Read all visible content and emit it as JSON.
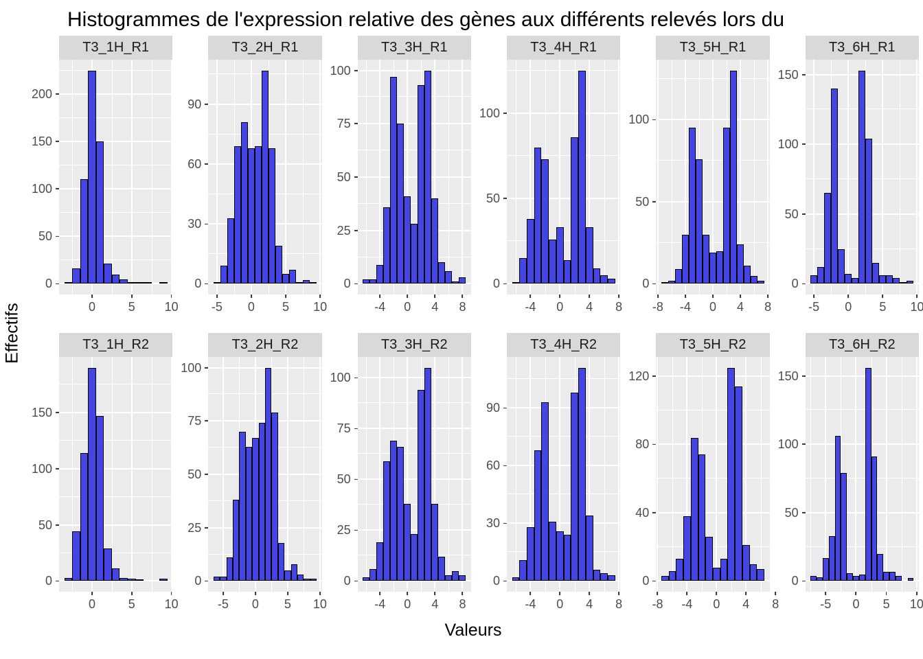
{
  "chart_data": {
    "type": "bar",
    "subtype": "faceted-histogram",
    "title": "Histogrammes de l'expression relative des gènes aux différents relevés lors du",
    "xlabel": "Valeurs",
    "ylabel": "Effectifs",
    "binwidth": 1,
    "legend": "none",
    "grid": "on",
    "facets": [
      {
        "label": "T3_1H_R1",
        "row": 1,
        "col": 1,
        "yticks": [
          0,
          50,
          100,
          150,
          200
        ],
        "xticks": [
          0,
          5,
          10
        ],
        "first_bin_center": -3,
        "counts": [
          2,
          16,
          110,
          225,
          150,
          21,
          10,
          5,
          2,
          1,
          1,
          0,
          2
        ]
      },
      {
        "label": "T3_2H_R1",
        "row": 1,
        "col": 2,
        "yticks": [
          0,
          30,
          60,
          90
        ],
        "xticks": [
          -5,
          0,
          5,
          10
        ],
        "first_bin_center": -5,
        "counts": [
          1,
          9,
          33,
          69,
          81,
          68,
          69,
          107,
          68,
          19,
          5,
          7,
          1,
          2,
          1
        ]
      },
      {
        "label": "T3_3H_R1",
        "row": 1,
        "col": 3,
        "yticks": [
          0,
          25,
          50,
          75,
          100
        ],
        "xticks": [
          -4,
          0,
          4,
          8
        ],
        "first_bin_center": -6,
        "counts": [
          2,
          2,
          9,
          36,
          97,
          75,
          41,
          28,
          93,
          100,
          40,
          10,
          6,
          1,
          3
        ]
      },
      {
        "label": "T3_4H_R1",
        "row": 1,
        "col": 4,
        "yticks": [
          0,
          50,
          100
        ],
        "xticks": [
          -4,
          0,
          4,
          8
        ],
        "first_bin_center": -6,
        "counts": [
          1,
          15,
          38,
          80,
          73,
          26,
          33,
          14,
          86,
          125,
          33,
          9,
          5,
          3
        ]
      },
      {
        "label": "T3_5H_R1",
        "row": 1,
        "col": 5,
        "yticks": [
          0,
          50,
          100
        ],
        "xticks": [
          -8,
          -4,
          0,
          4,
          8
        ],
        "first_bin_center": -7,
        "counts": [
          1,
          2,
          9,
          30,
          95,
          76,
          30,
          19,
          20,
          95,
          130,
          24,
          11,
          5,
          2
        ]
      },
      {
        "label": "T3_6H_R1",
        "row": 1,
        "col": 6,
        "yticks": [
          0,
          50,
          100,
          150
        ],
        "xticks": [
          -5,
          0,
          5,
          10
        ],
        "first_bin_center": -5,
        "counts": [
          6,
          12,
          65,
          140,
          25,
          7,
          4,
          153,
          104,
          15,
          6,
          6,
          4,
          1,
          2
        ]
      },
      {
        "label": "T3_1H_R2",
        "row": 2,
        "col": 1,
        "yticks": [
          0,
          50,
          100,
          150
        ],
        "xticks": [
          0,
          5,
          10
        ],
        "first_bin_center": -3,
        "counts": [
          3,
          44,
          114,
          190,
          147,
          29,
          11,
          3,
          2,
          1,
          0,
          0,
          2
        ]
      },
      {
        "label": "T3_2H_R2",
        "row": 2,
        "col": 2,
        "yticks": [
          0,
          25,
          50,
          75,
          100
        ],
        "xticks": [
          -5,
          0,
          5,
          10
        ],
        "first_bin_center": -6,
        "counts": [
          2,
          2,
          11,
          38,
          70,
          63,
          67,
          74,
          100,
          79,
          18,
          5,
          8,
          3,
          1,
          1
        ]
      },
      {
        "label": "T3_3H_R2",
        "row": 2,
        "col": 3,
        "yticks": [
          0,
          25,
          50,
          75,
          100
        ],
        "xticks": [
          -4,
          0,
          4,
          8
        ],
        "first_bin_center": -6,
        "counts": [
          2,
          6,
          19,
          59,
          69,
          66,
          38,
          23,
          94,
          105,
          38,
          12,
          3,
          5,
          3
        ]
      },
      {
        "label": "T3_4H_R2",
        "row": 2,
        "col": 4,
        "yticks": [
          0,
          30,
          60,
          90
        ],
        "xticks": [
          -4,
          0,
          4,
          8
        ],
        "first_bin_center": -6,
        "counts": [
          2,
          11,
          28,
          68,
          93,
          31,
          26,
          24,
          98,
          111,
          34,
          6,
          4,
          3
        ]
      },
      {
        "label": "T3_5H_R2",
        "row": 2,
        "col": 5,
        "yticks": [
          0,
          40,
          80,
          120
        ],
        "xticks": [
          -8,
          -4,
          0,
          4,
          8
        ],
        "first_bin_center": -7,
        "counts": [
          3,
          6,
          13,
          38,
          84,
          74,
          26,
          8,
          13,
          125,
          114,
          21,
          10,
          7
        ]
      },
      {
        "label": "T3_6H_R2",
        "row": 2,
        "col": 6,
        "yticks": [
          0,
          50,
          100,
          150
        ],
        "xticks": [
          -5,
          0,
          5,
          10
        ],
        "first_bin_center": -7,
        "counts": [
          4,
          3,
          17,
          33,
          106,
          79,
          6,
          4,
          5,
          156,
          91,
          20,
          7,
          7,
          4,
          0,
          2
        ]
      }
    ],
    "style": {
      "bar_fill": "#4545e5",
      "bar_stroke": "#000000",
      "panel_bg": "#ebebeb",
      "grid_color": "#ffffff",
      "strip_bg": "#d9d9d9",
      "axis_text_color": "#4d4d4d",
      "tick_mark_color": "#333333"
    },
    "layout": {
      "y_expansion": 0.05,
      "x_expansion": 0.05,
      "rows": 2,
      "cols": 6
    }
  }
}
